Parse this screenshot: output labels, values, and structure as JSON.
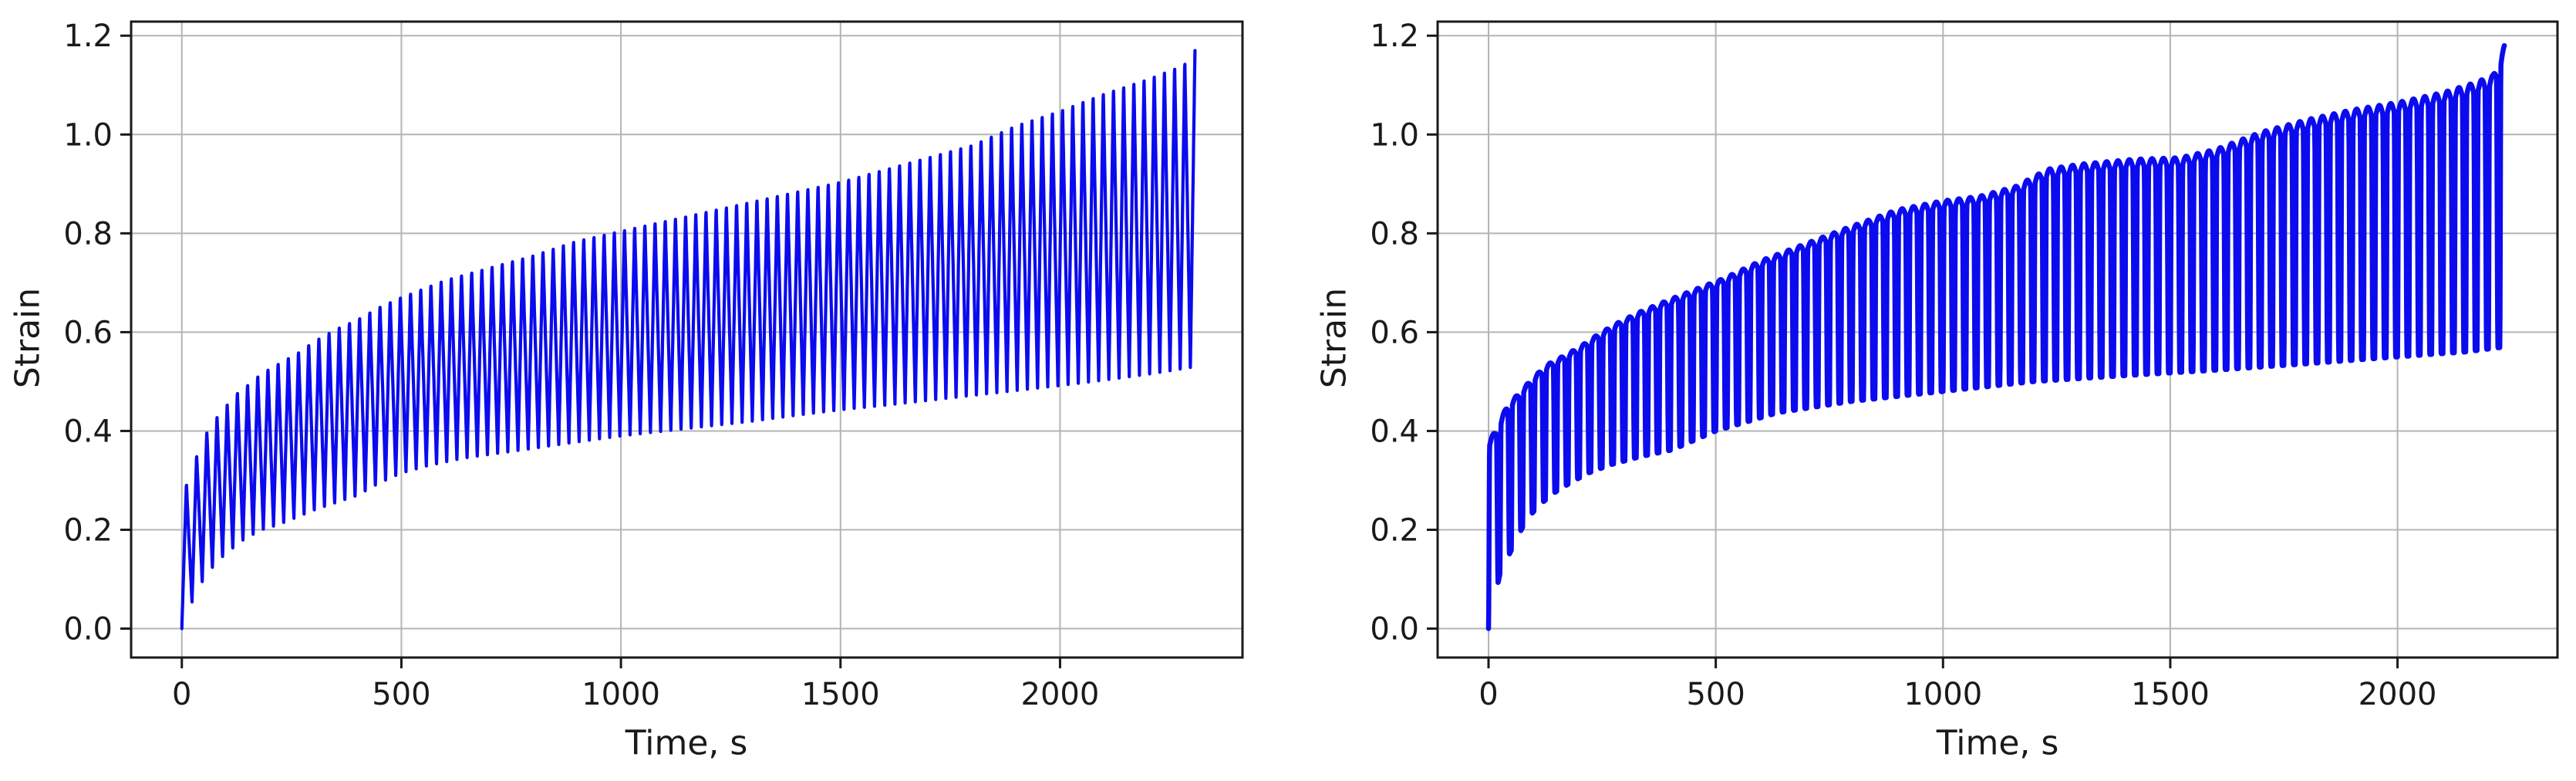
{
  "page": {
    "background": "#ffffff",
    "text_color": "#1a1a1a",
    "grid_color": "#b4b4b4",
    "spine_color": "#1a1a1a"
  },
  "chart_data": [
    {
      "type": "line",
      "title": "",
      "xlabel": "Time, s",
      "ylabel": "Strain",
      "series_color": "#0b0bee",
      "line_width": 4.2,
      "grid": true,
      "legend": "none",
      "xlim": [
        -115.5,
        2415.5
      ],
      "ylim": [
        -0.0585,
        1.2285
      ],
      "xticks": [
        0,
        500,
        1000,
        1500,
        2000
      ],
      "xtick_labels": [
        "0",
        "500",
        "1000",
        "1500",
        "2000"
      ],
      "yticks": [
        0.0,
        0.2,
        0.4,
        0.6,
        0.8,
        1.0,
        1.2
      ],
      "ytick_labels": [
        "0.0",
        "0.2",
        "0.4",
        "0.6",
        "0.8",
        "1.0",
        "1.2"
      ],
      "description": "Cyclic creep-recovery strain ratcheting: sharp triangular sawtooth cycles whose peak and valley envelopes rise with time; final cycle spikes to 1.17 at ~2300 s",
      "waveform": {
        "shape": "triangle-sawtooth",
        "period_s": 23.2,
        "cycles": 100,
        "rise_fraction": 0.45,
        "start_point": [
          0,
          0.0
        ],
        "final_peak": 1.17,
        "peak_envelope": [
          [
            0,
            0.28
          ],
          [
            15,
            0.3
          ],
          [
            44,
            0.38
          ],
          [
            70,
            0.42
          ],
          [
            97,
            0.45
          ],
          [
            126,
            0.48
          ],
          [
            155,
            0.5
          ],
          [
            181,
            0.52
          ],
          [
            210,
            0.535
          ],
          [
            240,
            0.55
          ],
          [
            270,
            0.565
          ],
          [
            300,
            0.585
          ],
          [
            350,
            0.61
          ],
          [
            400,
            0.63
          ],
          [
            450,
            0.655
          ],
          [
            500,
            0.675
          ],
          [
            600,
            0.71
          ],
          [
            700,
            0.735
          ],
          [
            800,
            0.76
          ],
          [
            900,
            0.79
          ],
          [
            1000,
            0.81
          ],
          [
            1100,
            0.83
          ],
          [
            1200,
            0.85
          ],
          [
            1300,
            0.87
          ],
          [
            1400,
            0.89
          ],
          [
            1500,
            0.91
          ],
          [
            1600,
            0.935
          ],
          [
            1700,
            0.96
          ],
          [
            1800,
            0.985
          ],
          [
            1900,
            1.025
          ],
          [
            2000,
            1.055
          ],
          [
            2100,
            1.09
          ],
          [
            2200,
            1.12
          ],
          [
            2280,
            1.148
          ],
          [
            2307,
            1.17
          ]
        ],
        "valley_envelope": [
          [
            0,
            0.0
          ],
          [
            30,
            0.07
          ],
          [
            56,
            0.11
          ],
          [
            85,
            0.14
          ],
          [
            111,
            0.16
          ],
          [
            140,
            0.18
          ],
          [
            181,
            0.2
          ],
          [
            218,
            0.21
          ],
          [
            260,
            0.225
          ],
          [
            300,
            0.24
          ],
          [
            350,
            0.255
          ],
          [
            400,
            0.27
          ],
          [
            450,
            0.295
          ],
          [
            500,
            0.315
          ],
          [
            560,
            0.33
          ],
          [
            640,
            0.345
          ],
          [
            720,
            0.355
          ],
          [
            800,
            0.365
          ],
          [
            900,
            0.378
          ],
          [
            1000,
            0.39
          ],
          [
            1100,
            0.4
          ],
          [
            1200,
            0.41
          ],
          [
            1300,
            0.42
          ],
          [
            1400,
            0.432
          ],
          [
            1500,
            0.443
          ],
          [
            1600,
            0.452
          ],
          [
            1700,
            0.462
          ],
          [
            1800,
            0.472
          ],
          [
            1900,
            0.482
          ],
          [
            2000,
            0.492
          ],
          [
            2100,
            0.503
          ],
          [
            2200,
            0.515
          ],
          [
            2307,
            0.53
          ]
        ]
      }
    },
    {
      "type": "line",
      "title": "",
      "xlabel": "Time, s",
      "ylabel": "Strain",
      "series_color": "#0b0bee",
      "line_width": 6.5,
      "grid": true,
      "legend": "none",
      "xlim": [
        -112,
        2352
      ],
      "ylim": [
        -0.0585,
        1.2285
      ],
      "xticks": [
        0,
        500,
        1000,
        1500,
        2000
      ],
      "xtick_labels": [
        "0",
        "500",
        "1000",
        "1500",
        "2000"
      ],
      "yticks": [
        0.0,
        0.2,
        0.4,
        0.6,
        0.8,
        1.0,
        1.2
      ],
      "ytick_labels": [
        "0.0",
        "0.2",
        "0.4",
        "0.6",
        "0.8",
        "1.0",
        "1.2"
      ],
      "description": "Cyclic creep strain with rounded flat-top pulses; peak envelope rises, plateaus near 0.95 around 1300-1520 s, then rises again; final cycle spikes to 1.18 at ~2235 s",
      "waveform": {
        "shape": "rounded-pulse",
        "period_s": 25,
        "cycles": 90,
        "rise_fraction": 0.1,
        "dome_end": 0.7,
        "fall_end": 0.84,
        "dome_depth": 0.035,
        "shoulder": 0.965,
        "start_point": [
          0,
          0.0
        ],
        "final_peak": 1.18,
        "peak_envelope": [
          [
            0,
            0.38
          ],
          [
            15,
            0.4
          ],
          [
            40,
            0.45
          ],
          [
            70,
            0.48
          ],
          [
            100,
            0.51
          ],
          [
            130,
            0.535
          ],
          [
            165,
            0.552
          ],
          [
            200,
            0.57
          ],
          [
            240,
            0.595
          ],
          [
            280,
            0.617
          ],
          [
            330,
            0.64
          ],
          [
            390,
            0.663
          ],
          [
            450,
            0.685
          ],
          [
            520,
            0.71
          ],
          [
            600,
            0.745
          ],
          [
            700,
            0.78
          ],
          [
            800,
            0.815
          ],
          [
            900,
            0.848
          ],
          [
            1000,
            0.866
          ],
          [
            1080,
            0.875
          ],
          [
            1160,
            0.895
          ],
          [
            1230,
            0.93
          ],
          [
            1300,
            0.94
          ],
          [
            1420,
            0.95
          ],
          [
            1520,
            0.953
          ],
          [
            1600,
            0.97
          ],
          [
            1700,
            1.005
          ],
          [
            1800,
            1.03
          ],
          [
            1900,
            1.05
          ],
          [
            2000,
            1.065
          ],
          [
            2100,
            1.085
          ],
          [
            2170,
            1.105
          ],
          [
            2210,
            1.12
          ],
          [
            2235,
            1.18
          ]
        ],
        "valley_envelope": [
          [
            0,
            0.0
          ],
          [
            25,
            0.11
          ],
          [
            56,
            0.17
          ],
          [
            83,
            0.22
          ],
          [
            112,
            0.25
          ],
          [
            145,
            0.275
          ],
          [
            180,
            0.295
          ],
          [
            220,
            0.315
          ],
          [
            270,
            0.332
          ],
          [
            330,
            0.347
          ],
          [
            405,
            0.362
          ],
          [
            500,
            0.4
          ],
          [
            637,
            0.437
          ],
          [
            800,
            0.46
          ],
          [
            1000,
            0.48
          ],
          [
            1200,
            0.5
          ],
          [
            1400,
            0.512
          ],
          [
            1600,
            0.523
          ],
          [
            1800,
            0.536
          ],
          [
            2000,
            0.55
          ],
          [
            2150,
            0.56
          ],
          [
            2235,
            0.57
          ]
        ]
      }
    }
  ]
}
